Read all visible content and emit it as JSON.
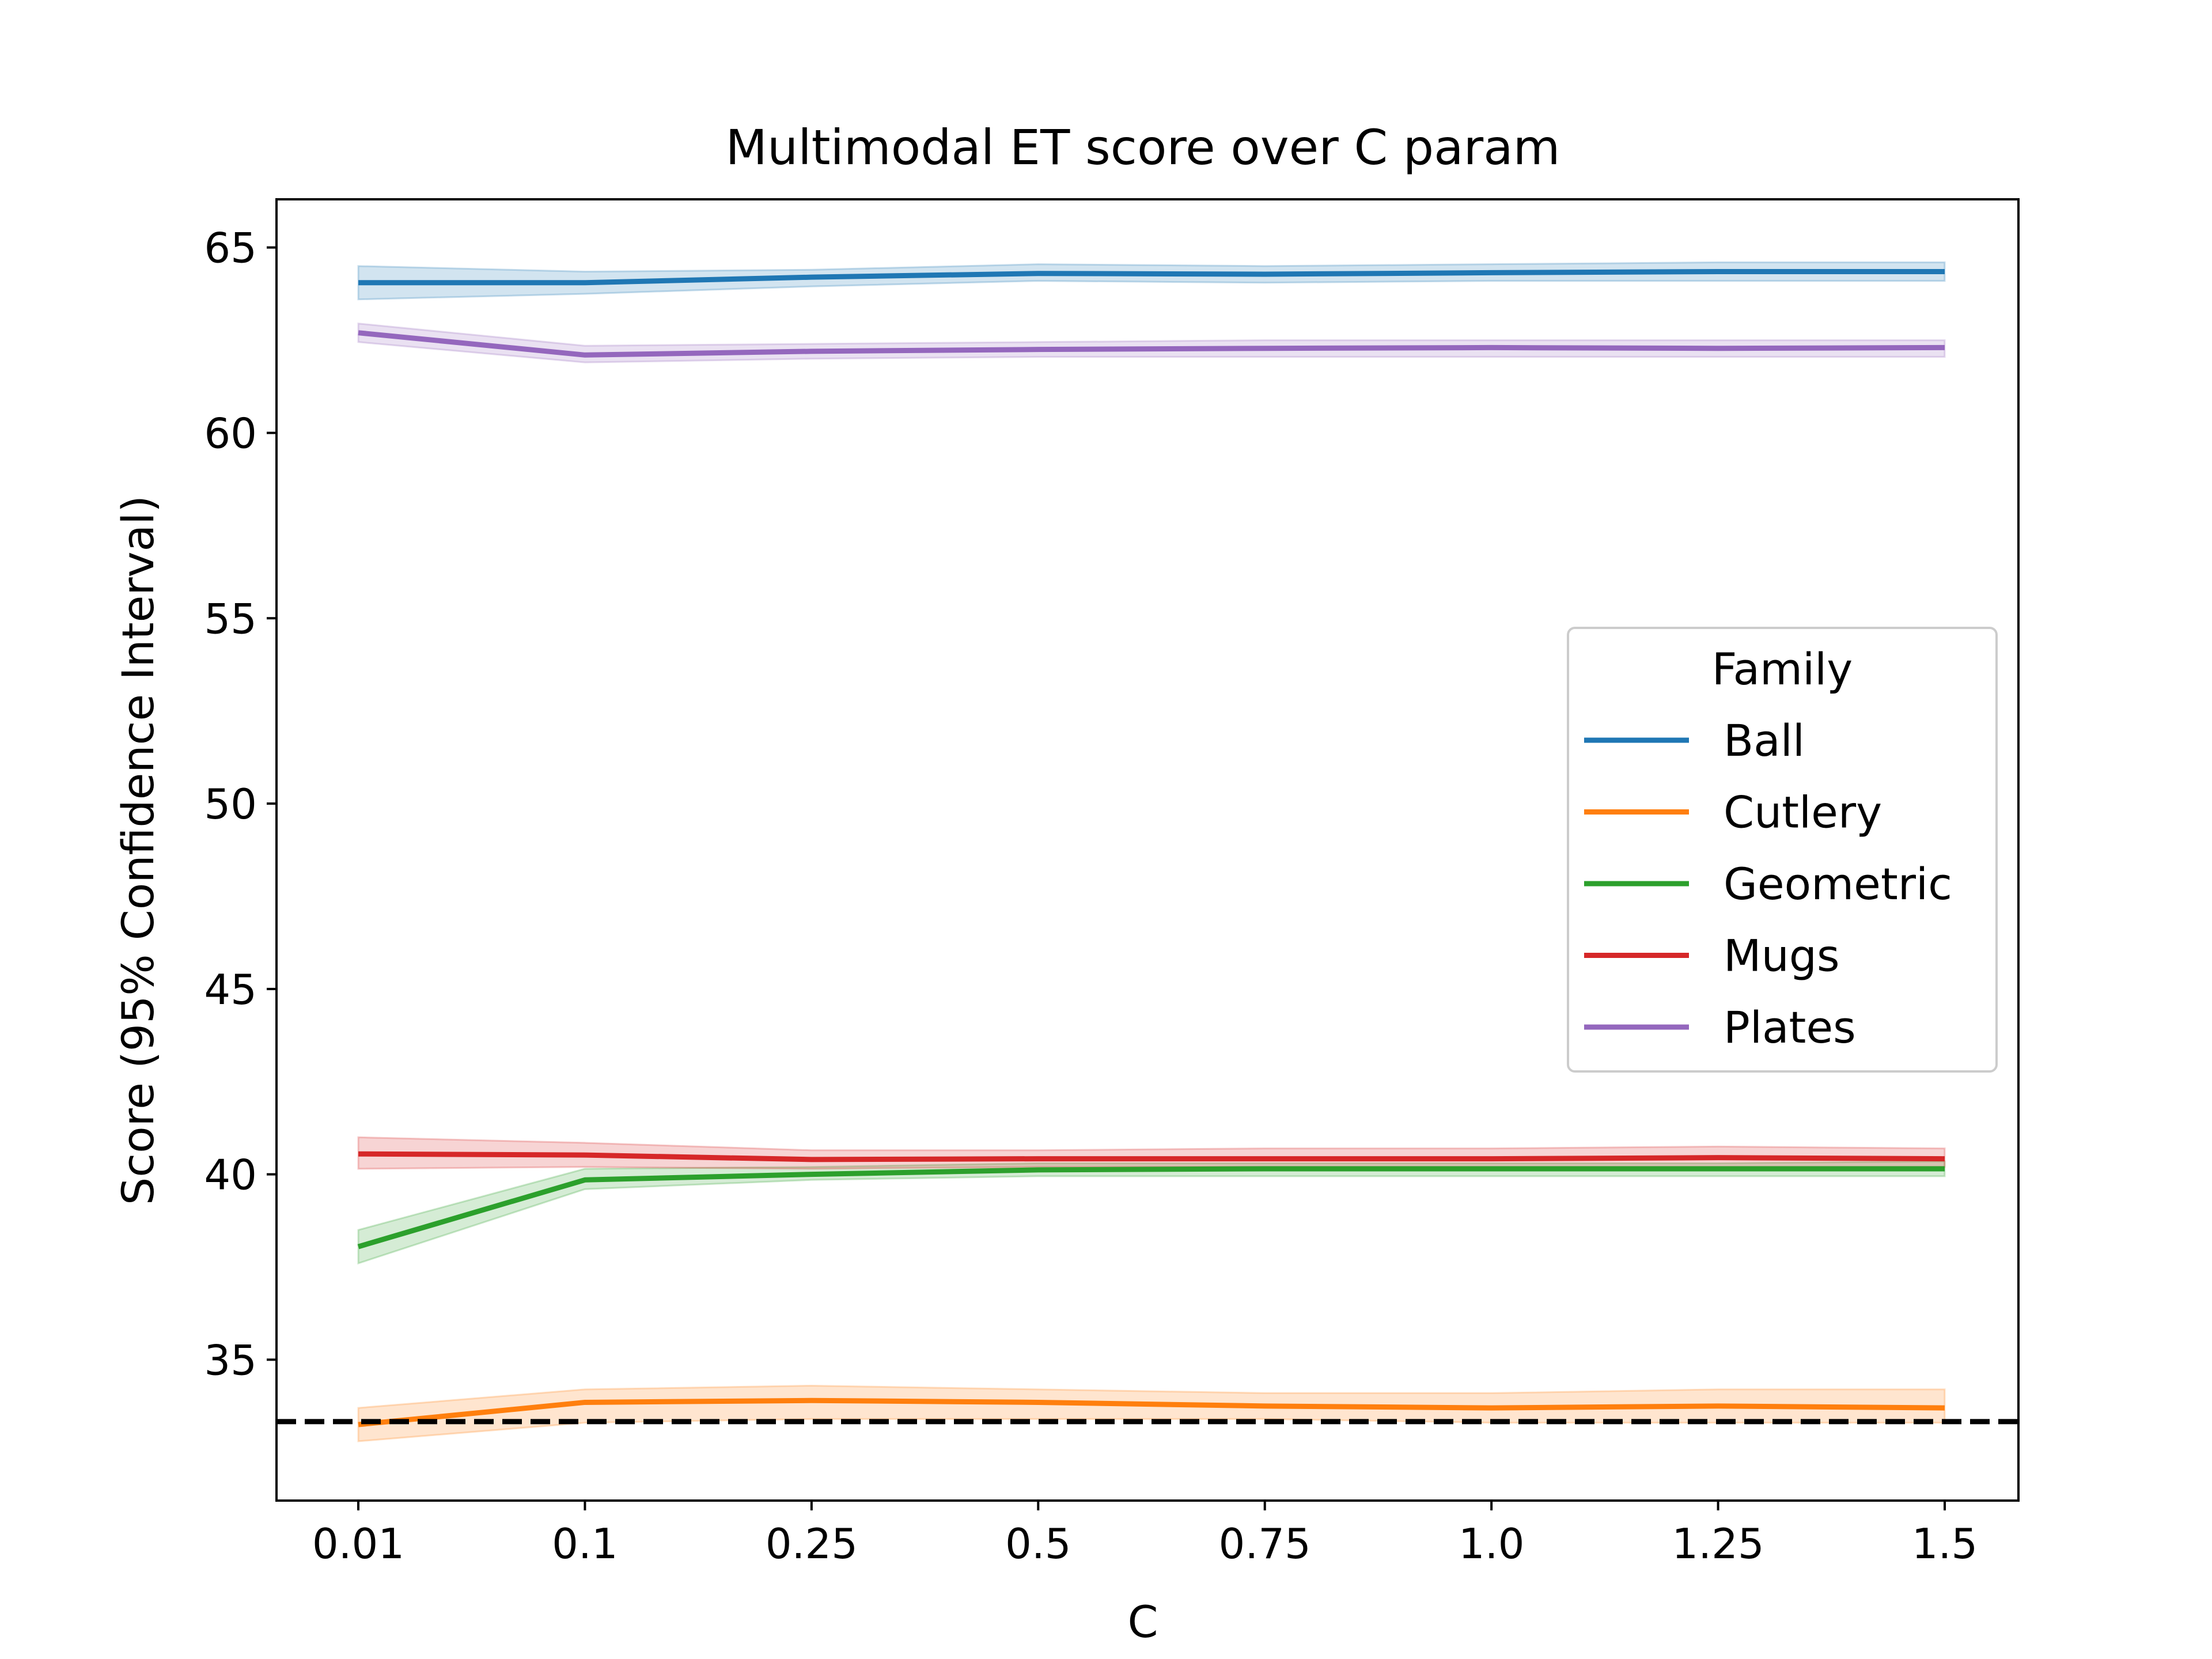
{
  "chart_data": {
    "type": "line",
    "title": "Multimodal ET score over C param",
    "xlabel": "C",
    "ylabel": "Score (95% Confidence Interval)",
    "x_scale": "categorical",
    "categories": [
      "0.01",
      "0.1",
      "0.25",
      "0.5",
      "0.75",
      "1.0",
      "1.25",
      "1.5"
    ],
    "ylim": [
      31.2,
      66.3
    ],
    "yticks": [
      35,
      40,
      45,
      50,
      55,
      60,
      65
    ],
    "grid": false,
    "legend": {
      "title": "Family",
      "placement": "center-right"
    },
    "series": [
      {
        "name": "Ball",
        "color": "#1f77b4",
        "values": [
          64.05,
          64.05,
          64.2,
          64.3,
          64.28,
          64.32,
          64.35,
          64.35
        ],
        "ci_low": [
          63.6,
          63.75,
          63.95,
          64.1,
          64.05,
          64.1,
          64.1,
          64.1
        ],
        "ci_high": [
          64.5,
          64.35,
          64.4,
          64.55,
          64.5,
          64.55,
          64.6,
          64.6
        ]
      },
      {
        "name": "Cutlery",
        "color": "#ff7f0e",
        "values": [
          33.25,
          33.85,
          33.9,
          33.85,
          33.75,
          33.7,
          33.75,
          33.7
        ],
        "ci_low": [
          32.8,
          33.3,
          33.4,
          33.4,
          33.4,
          33.3,
          33.3,
          33.3
        ],
        "ci_high": [
          33.7,
          34.2,
          34.3,
          34.2,
          34.1,
          34.1,
          34.2,
          34.2
        ]
      },
      {
        "name": "Geometric",
        "color": "#2ca02c",
        "values": [
          38.05,
          39.85,
          40.0,
          40.12,
          40.15,
          40.15,
          40.15,
          40.15
        ],
        "ci_low": [
          37.6,
          39.6,
          39.85,
          39.95,
          39.95,
          39.95,
          39.95,
          39.95
        ],
        "ci_high": [
          38.5,
          40.15,
          40.2,
          40.3,
          40.3,
          40.3,
          40.3,
          40.35
        ]
      },
      {
        "name": "Mugs",
        "color": "#d62728",
        "values": [
          40.55,
          40.52,
          40.4,
          40.42,
          40.42,
          40.42,
          40.45,
          40.42
        ],
        "ci_low": [
          40.15,
          40.2,
          40.15,
          40.2,
          40.2,
          40.2,
          40.2,
          40.2
        ],
        "ci_high": [
          41.0,
          40.85,
          40.65,
          40.65,
          40.7,
          40.7,
          40.75,
          40.7
        ]
      },
      {
        "name": "Plates",
        "color": "#9467bd",
        "values": [
          62.7,
          62.1,
          62.2,
          62.25,
          62.28,
          62.3,
          62.28,
          62.3
        ],
        "ci_low": [
          62.45,
          61.9,
          62.0,
          62.05,
          62.05,
          62.05,
          62.05,
          62.05
        ],
        "ci_high": [
          62.95,
          62.35,
          62.4,
          62.45,
          62.5,
          62.5,
          62.5,
          62.5
        ]
      }
    ],
    "reference_line": {
      "y": 33.33,
      "style": "dashed",
      "color": "#000000"
    }
  }
}
